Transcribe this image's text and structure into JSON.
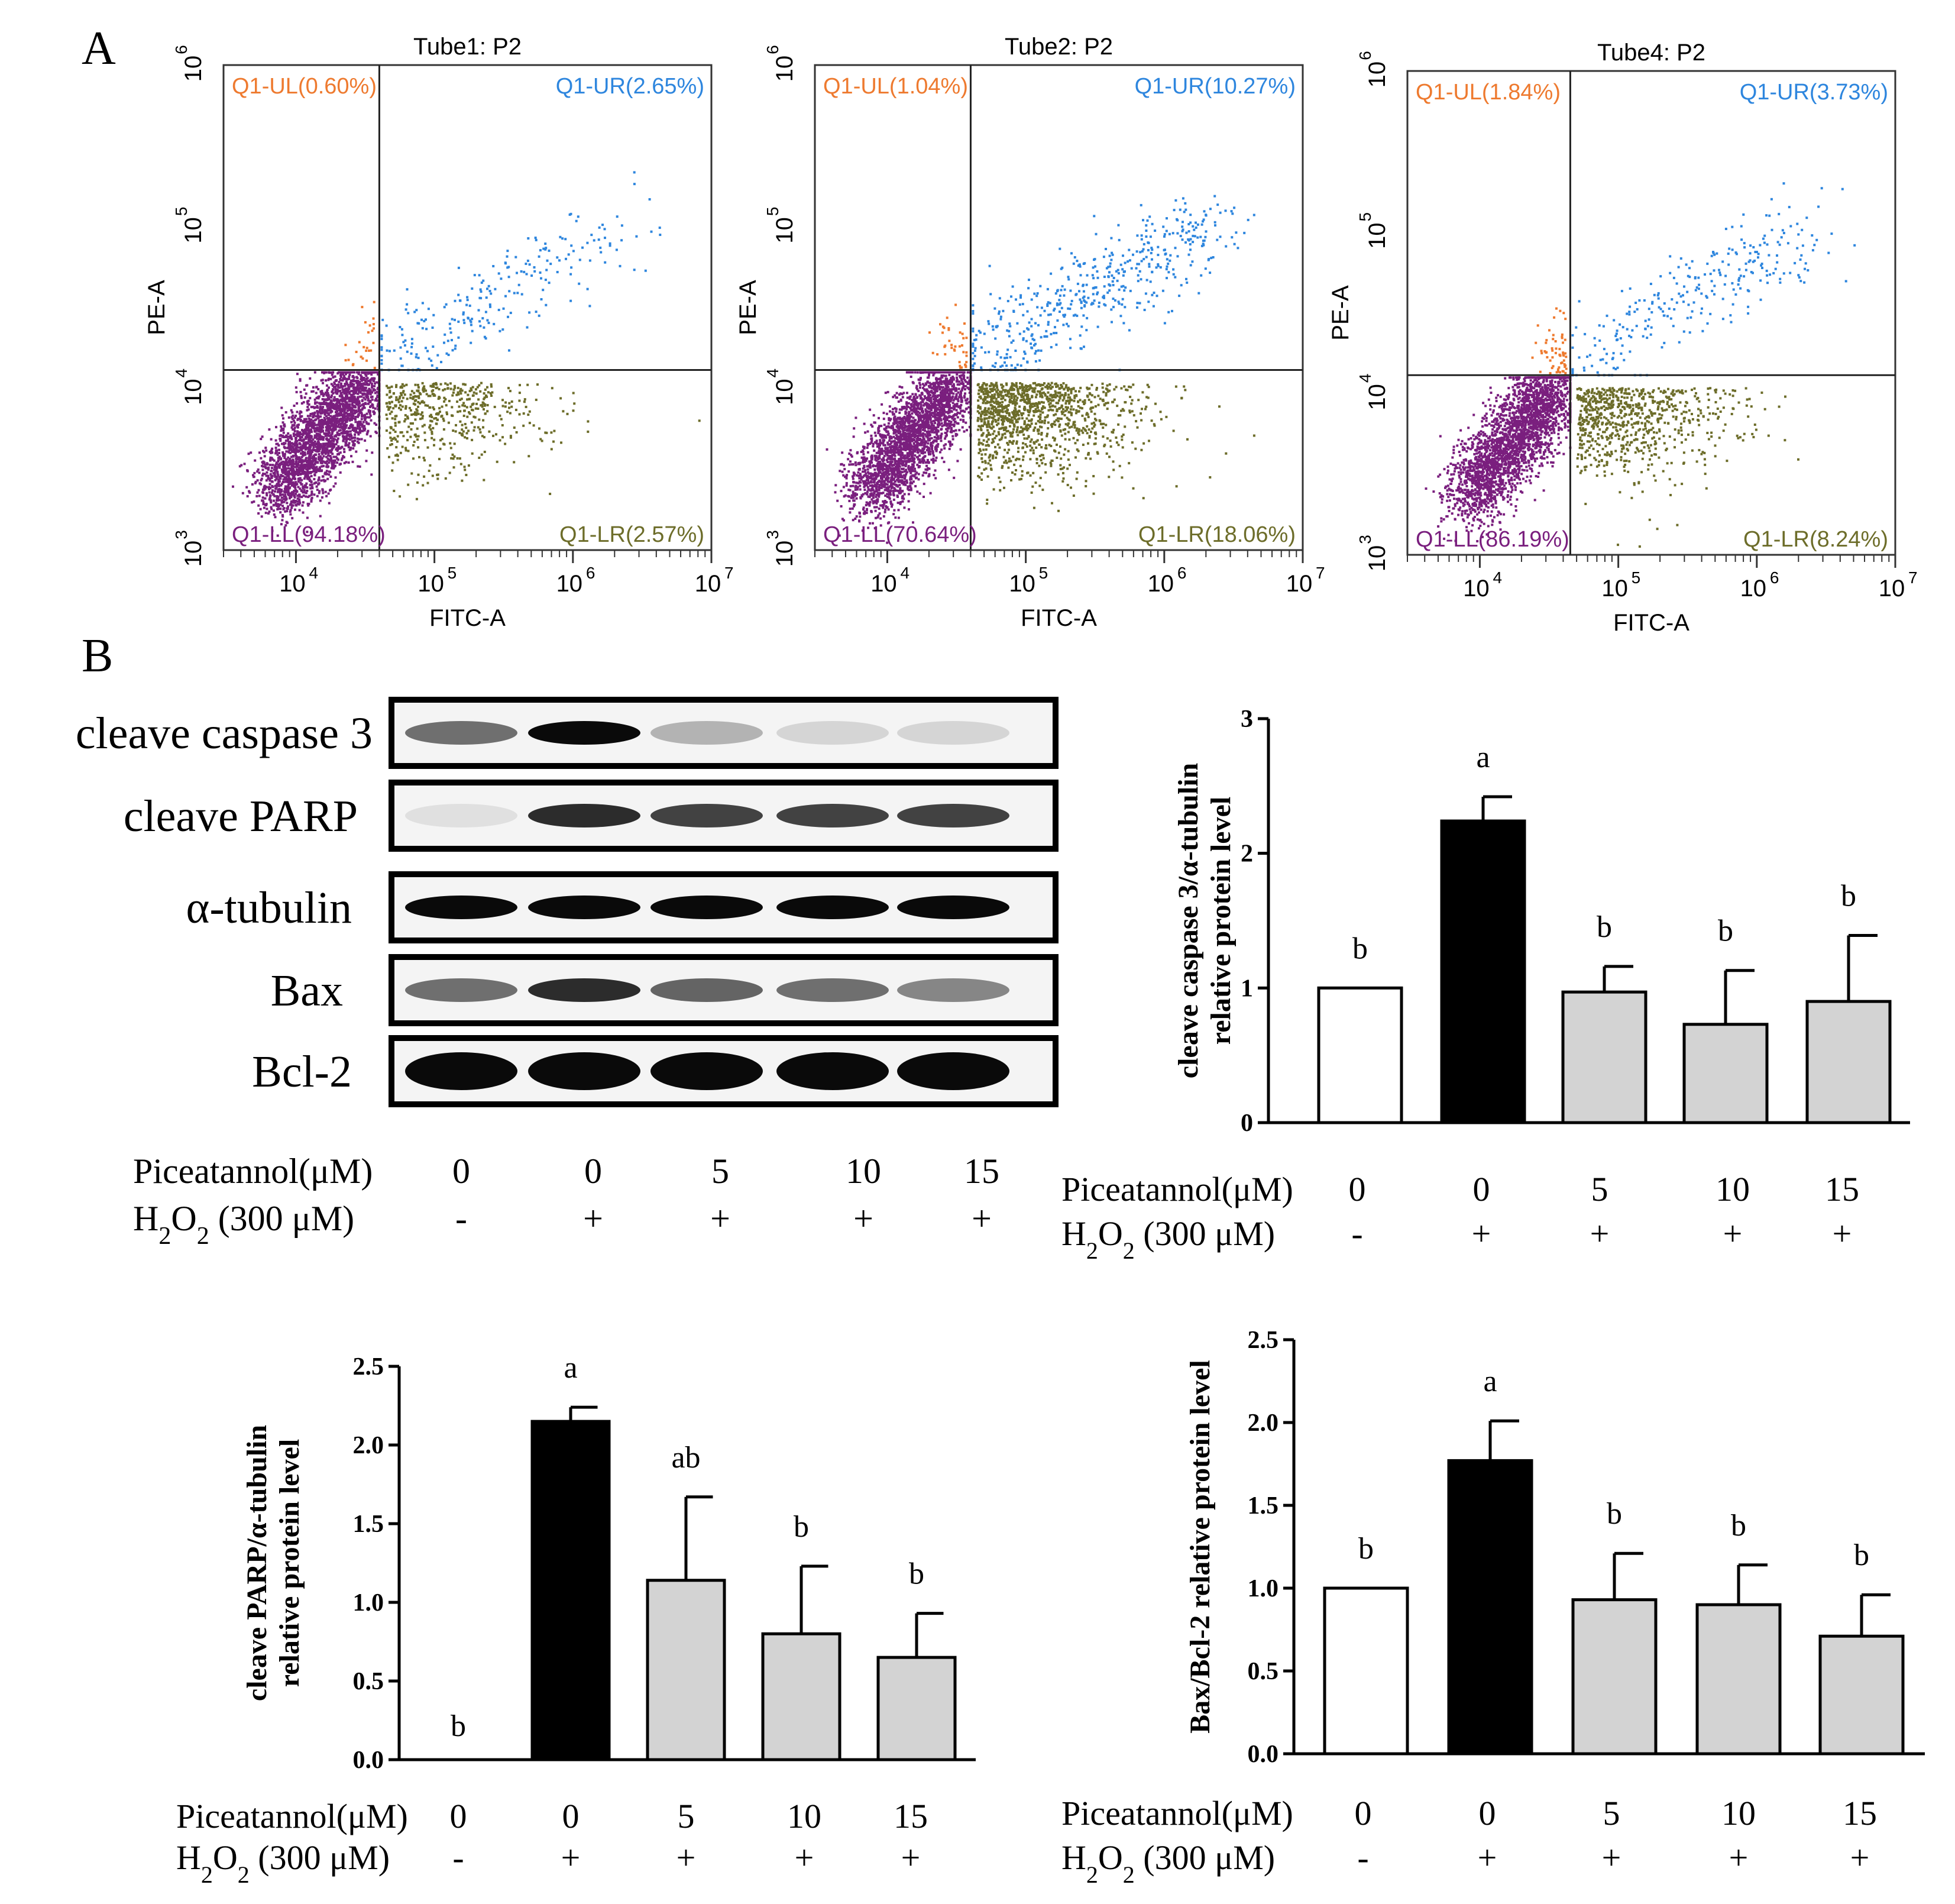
{
  "panels": {
    "A": "A",
    "B": "B"
  },
  "colors": {
    "ul": "#ee7a2f",
    "ur": "#2e86de",
    "ll": "#7a1f7e",
    "lr": "#6d6d2a",
    "control": "#ffffff",
    "h2o2": "#000000",
    "treated": "#d3d3d3",
    "blot_bg": "#f4f4f4"
  },
  "flow": [
    {
      "title": "Tube1: P2",
      "xlabel": "FITC-A",
      "ylabel": "PE-A",
      "x_ticks": [
        "10",
        "10",
        "10",
        "10"
      ],
      "x_exps": [
        "4",
        "5",
        "6",
        "7"
      ],
      "y_ticks": [
        "10",
        "10",
        "10",
        "10"
      ],
      "y_exps": [
        "3",
        "4",
        "5",
        "6"
      ],
      "quadrant_labels": {
        "ul": "Q1-UL(0.60%)",
        "ur": "Q1-UR(2.65%)",
        "ll": "Q1-LL(94.18%)",
        "lr": "Q1-LR(2.57%)"
      },
      "quadrants_percent": {
        "ul": 0.6,
        "ur": 2.65,
        "ll": 94.18,
        "lr": 2.57
      },
      "gate_x": 40000,
      "gate_y": 13000
    },
    {
      "title": "Tube2: P2",
      "xlabel": "FITC-A",
      "ylabel": "PE-A",
      "x_ticks": [
        "10",
        "10",
        "10",
        "10"
      ],
      "x_exps": [
        "4",
        "5",
        "6",
        "7"
      ],
      "y_ticks": [
        "10",
        "10",
        "10",
        "10"
      ],
      "y_exps": [
        "3",
        "4",
        "5",
        "6"
      ],
      "quadrant_labels": {
        "ul": "Q1-UL(1.04%)",
        "ur": "Q1-UR(10.27%)",
        "ll": "Q1-LL(70.64%)",
        "lr": "Q1-LR(18.06%)"
      },
      "quadrants_percent": {
        "ul": 1.04,
        "ur": 10.27,
        "ll": 70.64,
        "lr": 18.06
      },
      "gate_x": 40000,
      "gate_y": 13000
    },
    {
      "title": "Tube4: P2",
      "xlabel": "FITC-A",
      "ylabel": "PE-A",
      "x_ticks": [
        "10",
        "10",
        "10",
        "10"
      ],
      "x_exps": [
        "4",
        "5",
        "6",
        "7"
      ],
      "y_ticks": [
        "10",
        "10",
        "10",
        "10"
      ],
      "y_exps": [
        "3",
        "4",
        "5",
        "6"
      ],
      "quadrant_labels": {
        "ul": "Q1-UL(1.84%)",
        "ur": "Q1-UR(3.73%)",
        "ll": "Q1-LL(86.19%)",
        "lr": "Q1-LR(8.24%)"
      },
      "quadrants_percent": {
        "ul": 1.84,
        "ur": 3.73,
        "ll": 86.19,
        "lr": 8.24
      },
      "gate_x": 45000,
      "gate_y": 13000
    }
  ],
  "western_blot": {
    "bands": [
      {
        "label": "cleave caspase 3",
        "intensities": [
          0.55,
          1.0,
          0.25,
          0.1,
          0.1
        ]
      },
      {
        "label": "cleave PARP",
        "intensities": [
          0.05,
          0.85,
          0.75,
          0.75,
          0.75
        ]
      },
      {
        "label": "α-tubulin",
        "intensities": [
          1.0,
          1.0,
          1.0,
          1.0,
          1.0
        ]
      },
      {
        "label": "Bax",
        "intensities": [
          0.55,
          0.85,
          0.6,
          0.55,
          0.45
        ]
      },
      {
        "label": "Bcl-2",
        "intensities": [
          1.0,
          1.0,
          1.0,
          1.0,
          1.0
        ]
      }
    ],
    "conditions": {
      "pic_label": "Piceatannol(μM)",
      "h2o2_label_parts": [
        "H",
        "2",
        "O",
        "2",
        " (300 μM)"
      ],
      "pic_values": [
        "0",
        "0",
        "5",
        "10",
        "15"
      ],
      "h2o2_values": [
        "-",
        "+",
        "+",
        "+",
        "+"
      ]
    }
  },
  "chart_data": [
    {
      "type": "bar",
      "name": "caspase3",
      "ylabel_lines": [
        "cleave caspase 3/α-tubulin",
        "relative protein level"
      ],
      "categories": [
        "0/-",
        "0/+",
        "5/+",
        "10/+",
        "15/+"
      ],
      "values": [
        1.0,
        2.24,
        0.97,
        0.73,
        0.9
      ],
      "errors": [
        0.0,
        0.18,
        0.19,
        0.4,
        0.49
      ],
      "letters": [
        "b",
        "a",
        "b",
        "b",
        "b"
      ],
      "ylim": [
        0,
        3
      ],
      "yticks": [
        "0",
        "1",
        "2",
        "3"
      ],
      "pic_label": "Piceatannol(μM)",
      "h2o2_label_parts": [
        "H",
        "2",
        "O",
        "2",
        " (300 μM)"
      ],
      "pic_values": [
        "0",
        "0",
        "5",
        "10",
        "15"
      ],
      "h2o2_values": [
        "-",
        "+",
        "+",
        "+",
        "+"
      ]
    },
    {
      "type": "bar",
      "name": "parp",
      "ylabel_lines": [
        "cleave PARP/α-tubulin",
        "relative protein level"
      ],
      "categories": [
        "0/-",
        "0/+",
        "5/+",
        "10/+",
        "15/+"
      ],
      "values": [
        0.0,
        2.15,
        1.14,
        0.8,
        0.65
      ],
      "errors": [
        0.0,
        0.09,
        0.53,
        0.43,
        0.28
      ],
      "letters": [
        "b",
        "a",
        "ab",
        "b",
        "b"
      ],
      "ylim": [
        0,
        2.5
      ],
      "yticks": [
        "0.0",
        "0.5",
        "1.0",
        "1.5",
        "2.0",
        "2.5"
      ],
      "pic_label": "Piceatannol(μM)",
      "h2o2_label_parts": [
        "H",
        "2",
        "O",
        "2",
        " (300 μM)"
      ],
      "pic_values": [
        "0",
        "0",
        "5",
        "10",
        "15"
      ],
      "h2o2_values": [
        "-",
        "+",
        "+",
        "+",
        "+"
      ]
    },
    {
      "type": "bar",
      "name": "baxbcl2",
      "ylabel_lines": [
        "Bax/Bcl-2 relative protein level"
      ],
      "categories": [
        "0/-",
        "0/+",
        "5/+",
        "10/+",
        "15/+"
      ],
      "values": [
        1.0,
        1.77,
        0.93,
        0.9,
        0.71
      ],
      "errors": [
        0.0,
        0.24,
        0.28,
        0.24,
        0.25
      ],
      "letters": [
        "b",
        "a",
        "b",
        "b",
        "b"
      ],
      "ylim": [
        0,
        2.5
      ],
      "yticks": [
        "0.0",
        "0.5",
        "1.0",
        "1.5",
        "2.0",
        "2.5"
      ],
      "pic_label": "Piceatannol(μM)",
      "h2o2_label_parts": [
        "H",
        "2",
        "O",
        "2",
        " (300 μM)"
      ],
      "pic_values": [
        "0",
        "0",
        "5",
        "10",
        "15"
      ],
      "h2o2_values": [
        "-",
        "+",
        "+",
        "+",
        "+"
      ]
    }
  ]
}
